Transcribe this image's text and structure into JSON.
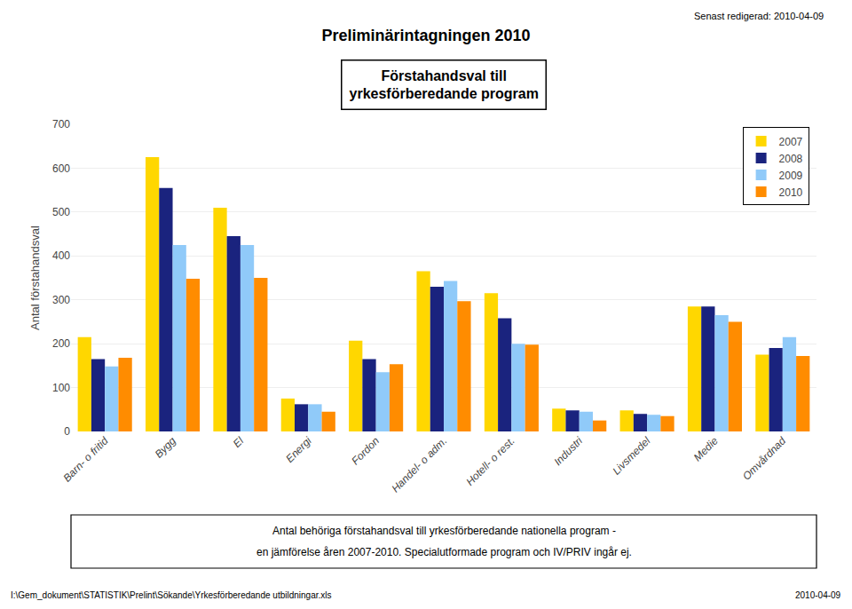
{
  "chart_data": {
    "type": "bar",
    "title": "Preliminärintagningen 2010",
    "subtitle": "Förstahandsval till\nyrkesförberedande program",
    "categories": [
      "Barn- o fritid",
      "Bygg",
      "El",
      "Energi",
      "Fordon",
      "Handel- o adm.",
      "Hotell- o rest.",
      "Industri",
      "Livsmedel",
      "Medie",
      "Omvårdnad"
    ],
    "series": [
      {
        "name": "2007",
        "color": "#FFD700",
        "values": [
          215,
          625,
          510,
          75,
          207,
          365,
          315,
          52,
          48,
          285,
          175
        ]
      },
      {
        "name": "2008",
        "color": "#1A237E",
        "values": [
          165,
          555,
          445,
          62,
          165,
          330,
          258,
          48,
          40,
          285,
          190
        ]
      },
      {
        "name": "2009",
        "color": "#90CAF9",
        "values": [
          148,
          425,
          425,
          62,
          135,
          343,
          200,
          45,
          38,
          265,
          215
        ]
      },
      {
        "name": "2010",
        "color": "#FF8C00",
        "values": [
          168,
          348,
          350,
          45,
          153,
          297,
          198,
          25,
          35,
          250,
          172
        ]
      }
    ],
    "ylabel": "Antal förstahandsval",
    "ylim": [
      0,
      700
    ],
    "yticks": [
      0,
      100,
      200,
      300,
      400,
      500,
      600,
      700
    ],
    "grid": true,
    "legend": "upper right",
    "annotations": [
      "Senast redigerad: 2010-04-09",
      "Antal behöriga förstahandsval till yrkesförberedande nationella program -",
      "en jämförelse åren 2007-2010. Specialutformade program och IV/PRIV ingår ej.",
      "I:\\Gem_dokument\\STATISTIK\\Prelint\\Sökande\\Yrkesförberedande utbildningar.xls",
      "2010-04-09"
    ]
  }
}
